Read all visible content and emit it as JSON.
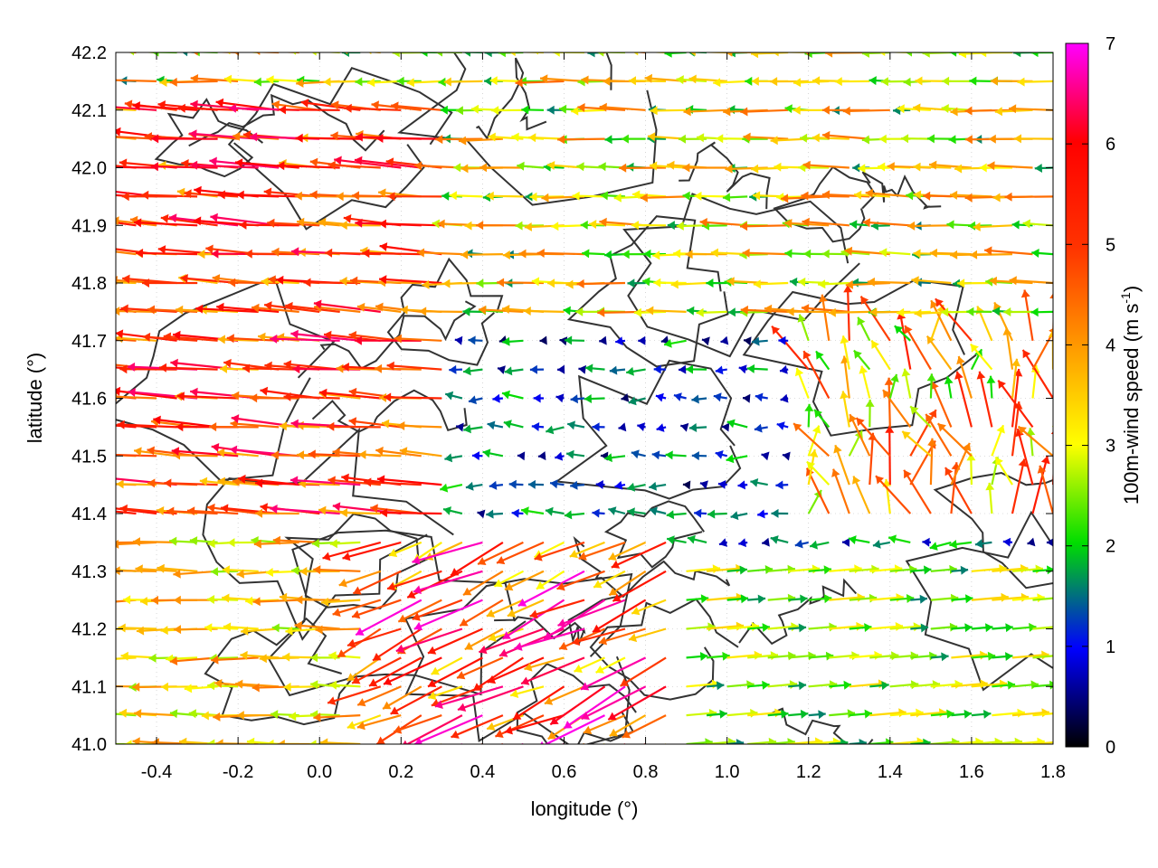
{
  "chart_data": {
    "type": "vector-field",
    "xlabel": "longitude (°)",
    "ylabel": "latitude (°)",
    "colorbar_label": "100m-wind speed (m s-1)",
    "colorbar_label_main": "100m-wind speed (m s",
    "colorbar_label_sup": "-1",
    "colorbar_label_end": ")",
    "xlim": [
      -0.5,
      1.8
    ],
    "ylim": [
      41.0,
      42.2
    ],
    "clim": [
      0,
      7
    ],
    "xticks": [
      "-0.4",
      "-0.2",
      "0.0",
      "0.2",
      "0.4",
      "0.6",
      "0.8",
      "1.0",
      "1.2",
      "1.4",
      "1.6",
      "1.8"
    ],
    "xtick_values": [
      -0.4,
      -0.2,
      0.0,
      0.2,
      0.4,
      0.6,
      0.8,
      1.0,
      1.2,
      1.4,
      1.6,
      1.8
    ],
    "yticks": [
      "41.0",
      "41.1",
      "41.2",
      "41.3",
      "41.4",
      "41.5",
      "41.6",
      "41.7",
      "41.8",
      "41.9",
      "42.0",
      "42.1",
      "42.2"
    ],
    "ytick_values": [
      41.0,
      41.1,
      41.2,
      41.3,
      41.4,
      41.5,
      41.6,
      41.7,
      41.8,
      41.9,
      42.0,
      42.1,
      42.2
    ],
    "cbar_ticks": [
      "0",
      "1",
      "2",
      "3",
      "4",
      "5",
      "6",
      "7"
    ],
    "cbar_tick_values": [
      0,
      1,
      2,
      3,
      4,
      5,
      6,
      7
    ],
    "colormap": [
      "#000000",
      "#0000ff",
      "#00dd00",
      "#ffff00",
      "#ff9900",
      "#ff0000",
      "#ff00ff"
    ],
    "grid": true,
    "legend": "colorbar-right",
    "wind_regions": [
      {
        "region": "west, 41.4-42.1",
        "direction_deg_from_east": 170,
        "speed_range": [
          4,
          6.5
        ]
      },
      {
        "region": "central-north, 41.7-42.2",
        "direction_deg_from_east": 178,
        "speed_range": [
          2,
          4
        ]
      },
      {
        "region": "central, 41.4-41.7",
        "direction_deg_from_east": 180,
        "speed_range": [
          0.3,
          1.8
        ]
      },
      {
        "region": "east, 41.0-41.3",
        "direction_deg_from_east": 5,
        "speed_range": [
          1.5,
          3.5
        ]
      },
      {
        "region": "south-central, 41.0-41.35",
        "direction_deg_from_east": 200,
        "speed_range": [
          4,
          7
        ]
      }
    ],
    "contours": "orography (black lines)"
  }
}
